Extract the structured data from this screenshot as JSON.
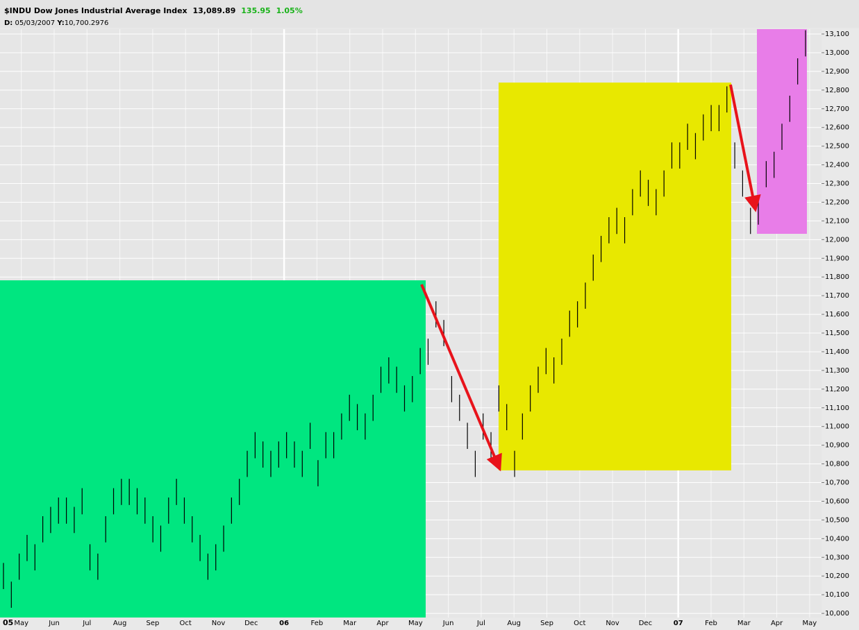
{
  "chart_data": {
    "type": "ohlc",
    "symbol": "$INDU",
    "title": "Dow Jones Industrial Average Index",
    "last": "13,089.89",
    "change": "135.95",
    "change_pct": "1.05%",
    "cursor_date_label": "D:",
    "cursor_date": "05/03/2007",
    "cursor_value_label": "Y:",
    "cursor_value": "10,700.2976",
    "start_year": "05",
    "categories": [
      "May",
      "Jun",
      "Jul",
      "Aug",
      "Sep",
      "Oct",
      "Nov",
      "Dec",
      "06",
      "Feb",
      "Mar",
      "Apr",
      "May",
      "Jun",
      "Jul",
      "Aug",
      "Sep",
      "Oct",
      "Nov",
      "Dec",
      "07",
      "Feb",
      "Mar",
      "Apr",
      "May"
    ],
    "color": "#000000",
    "grid": true,
    "ylim": [
      9978,
      13126
    ],
    "yticks": [
      {
        "value": 10000,
        "label": "10,000"
      },
      {
        "value": 10100,
        "label": "10,100"
      },
      {
        "value": 10200,
        "label": "10,200"
      },
      {
        "value": 10300,
        "label": "10,300"
      },
      {
        "value": 10400,
        "label": "10,400"
      },
      {
        "value": 10500,
        "label": "10,500"
      },
      {
        "value": 10600,
        "label": "10,600"
      },
      {
        "value": 10700,
        "label": "10,700"
      },
      {
        "value": 10800,
        "label": "10,800"
      },
      {
        "value": 10900,
        "label": "10,900"
      },
      {
        "value": 11000,
        "label": "11,000"
      },
      {
        "value": 11100,
        "label": "11,100"
      },
      {
        "value": 11200,
        "label": "11,200"
      },
      {
        "value": 11300,
        "label": "11,300"
      },
      {
        "value": 11400,
        "label": "11,400"
      },
      {
        "value": 11500,
        "label": "11,500"
      },
      {
        "value": 11600,
        "label": "11,600"
      },
      {
        "value": 11700,
        "label": "11,700"
      },
      {
        "value": 11800,
        "label": "11,800"
      },
      {
        "value": 11900,
        "label": "11,900"
      },
      {
        "value": 12000,
        "label": "12,000"
      },
      {
        "value": 12100,
        "label": "12,100"
      },
      {
        "value": 12200,
        "label": "12,200"
      },
      {
        "value": 12300,
        "label": "12,300"
      },
      {
        "value": 12400,
        "label": "12,400"
      },
      {
        "value": 12500,
        "label": "12,500"
      },
      {
        "value": 12600,
        "label": "12,600"
      },
      {
        "value": 12700,
        "label": "12,700"
      },
      {
        "value": 12800,
        "label": "12,800"
      },
      {
        "value": 12900,
        "label": "12,900"
      },
      {
        "value": 13000,
        "label": "13,000"
      },
      {
        "value": 13100,
        "label": "13,100"
      }
    ],
    "low": [
      10130,
      10030,
      10180,
      10280,
      10230,
      10380,
      10430,
      10480,
      10480,
      10430,
      10530,
      10230,
      10180,
      10380,
      10530,
      10580,
      10580,
      10530,
      10480,
      10380,
      10330,
      10480,
      10580,
      10480,
      10380,
      10280,
      10180,
      10230,
      10330,
      10480,
      10580,
      10730,
      10830,
      10780,
      10730,
      10780,
      10830,
      10780,
      10730,
      10880,
      10680,
      10830,
      10830,
      10930,
      11030,
      10980,
      10930,
      11030,
      11180,
      11230,
      11180,
      11080,
      11130,
      11280,
      11330,
      11530,
      11430,
      11130,
      11030,
      10880,
      10730,
      10930,
      10830,
      11080,
      10980,
      10730,
      10930,
      11080,
      11180,
      11280,
      11230,
      11330,
      11480,
      11530,
      11630,
      11780,
      11880,
      11980,
      12030,
      11980,
      12130,
      12230,
      12180,
      12130,
      12230,
      12380,
      12380,
      12480,
      12430,
      12530,
      12580,
      12580,
      12680,
      12380,
      12230,
      12030,
      12080,
      12280,
      12330,
      12480,
      12630,
      12830,
      12980
    ],
    "high": [
      10270,
      10170,
      10320,
      10420,
      10370,
      10520,
      10570,
      10620,
      10620,
      10570,
      10670,
      10370,
      10320,
      10520,
      10670,
      10720,
      10720,
      10670,
      10620,
      10520,
      10470,
      10620,
      10720,
      10620,
      10520,
      10420,
      10320,
      10370,
      10470,
      10620,
      10720,
      10870,
      10970,
      10920,
      10870,
      10920,
      10970,
      10920,
      10870,
      11020,
      10820,
      10970,
      10970,
      11070,
      11170,
      11120,
      11070,
      11170,
      11320,
      11370,
      11320,
      11220,
      11270,
      11420,
      11470,
      11670,
      11570,
      11270,
      11170,
      11020,
      10870,
      11070,
      10970,
      11220,
      11120,
      10870,
      11070,
      11220,
      11320,
      11420,
      11370,
      11470,
      11620,
      11670,
      11770,
      11920,
      12020,
      12120,
      12170,
      12120,
      12270,
      12370,
      12320,
      12270,
      12370,
      12520,
      12520,
      12620,
      12570,
      12670,
      12720,
      12720,
      12820,
      12520,
      12370,
      12170,
      12220,
      12420,
      12470,
      12620,
      12770,
      12970,
      13120
    ]
  }
}
